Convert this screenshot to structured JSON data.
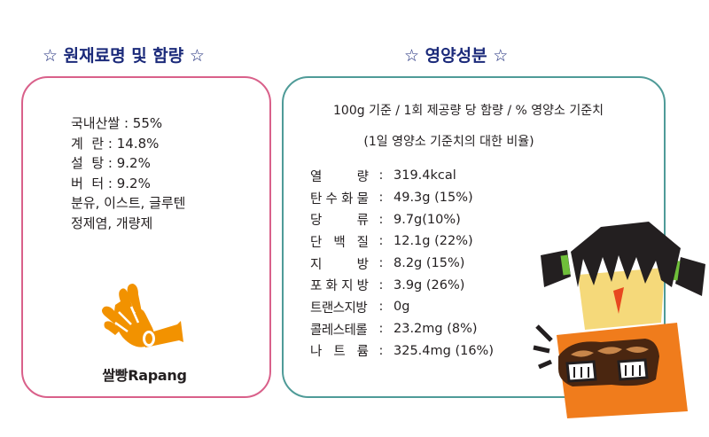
{
  "ingredients_section": {
    "title": "원재료명 및 함량",
    "star": "☆",
    "lines": [
      "국내산쌀 : 55%",
      "계  란 : 14.8%",
      "설  탕 : 9.2%",
      "버  터 : 9.2%",
      "분유, 이스트, 글루텐",
      "정제염, 개량제"
    ],
    "logo_text": "쌀빵Rapang"
  },
  "nutrition_section": {
    "title": "영양성분",
    "star": "☆",
    "basis_line1": "100g 기준 / 1회 제공량 당 함량 / % 영양소 기준치",
    "basis_line2": "(1일 영양소 기준치의 대한 비율)",
    "rows": [
      {
        "label": "열량",
        "value": "319.4kcal"
      },
      {
        "label": "탄수화물",
        "value": "49.3g (15%)"
      },
      {
        "label": "당류",
        "value": "9.7g(10%)"
      },
      {
        "label": "단백질",
        "value": "12.1g (22%)"
      },
      {
        "label": "지방",
        "value": "8.2g (15%)"
      },
      {
        "label": "포화지방",
        "value": "3.9g (26%)"
      },
      {
        "label": "트랜스지방",
        "value": "0g"
      },
      {
        "label": "콜레스테롤",
        "value": "23.2mg (8%)"
      },
      {
        "label": "나트륨",
        "value": "325.4mg (16%)"
      }
    ],
    "colon": ":"
  },
  "colors": {
    "heading": "#1b2a7a",
    "ingredients_border": "#d9608a",
    "nutrition_border": "#4f9b98",
    "logo_orange": "#f29200",
    "girl_face": "#f5d97a",
    "girl_shirt": "#f07c1c"
  },
  "icons": {
    "logo": "hand-horn-icon",
    "character": "girl-holding-bread-illustration"
  }
}
